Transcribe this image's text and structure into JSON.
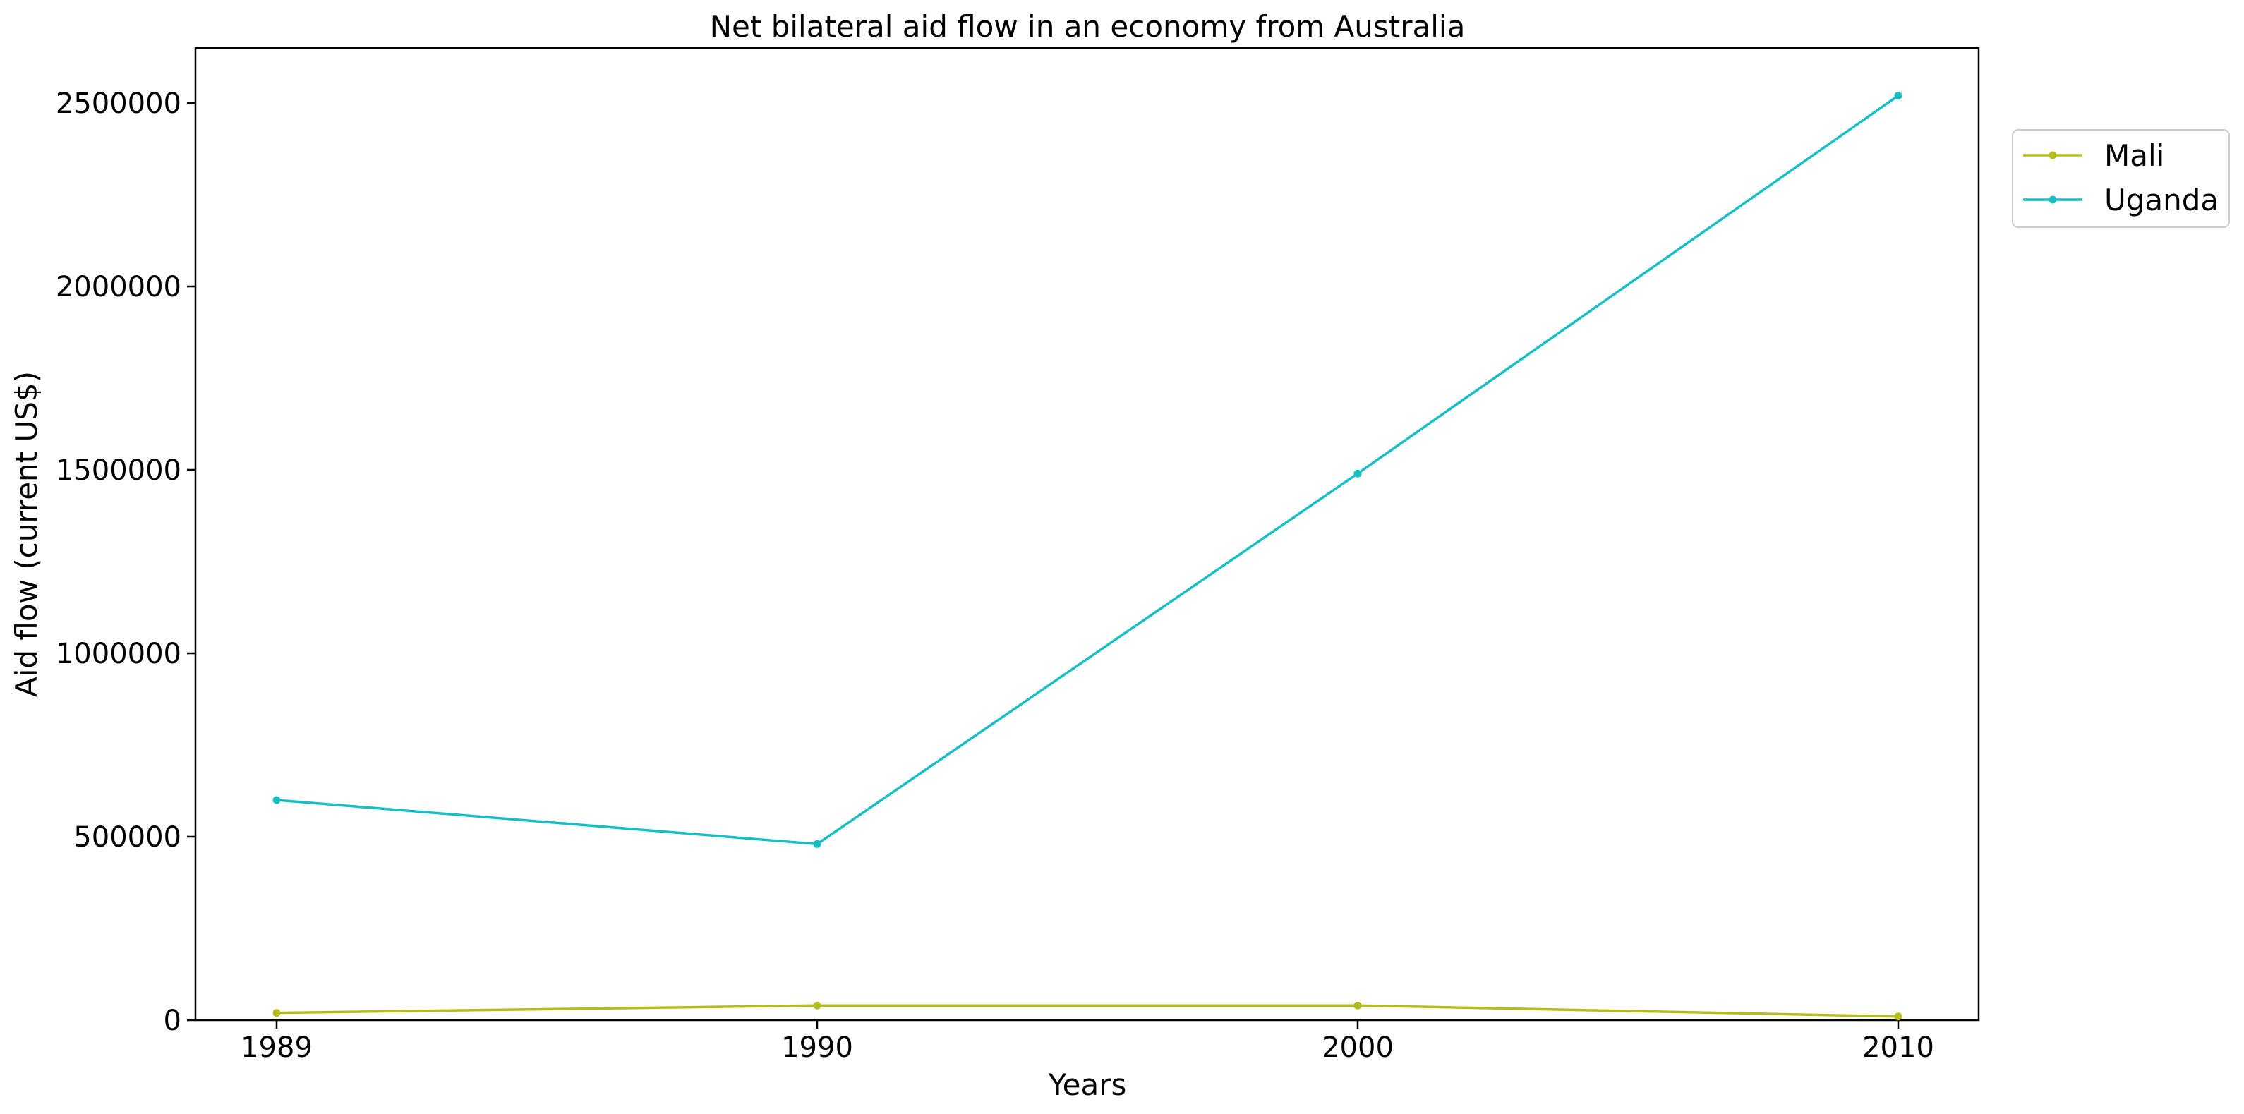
{
  "chart_data": {
    "type": "line",
    "title": "Net bilateral aid flow in an economy from Australia",
    "xlabel": "Years",
    "ylabel": "Aid flow (current US$)",
    "categories": [
      "1989",
      "1990",
      "2000",
      "2010"
    ],
    "ylim": [
      0,
      2650000
    ],
    "yticks": [
      0,
      500000,
      1000000,
      1500000,
      2000000,
      2500000
    ],
    "ytick_labels": [
      "0",
      "500000",
      "1000000",
      "1500000",
      "2000000",
      "2500000"
    ],
    "grid": false,
    "legend_position": "top-right outside",
    "series": [
      {
        "name": "Mali",
        "color": "#b5bd1a",
        "values": [
          20000,
          40000,
          40000,
          10000
        ]
      },
      {
        "name": "Uganda",
        "color": "#17bfc4",
        "values": [
          600000,
          480000,
          1490000,
          2520000
        ]
      }
    ]
  }
}
